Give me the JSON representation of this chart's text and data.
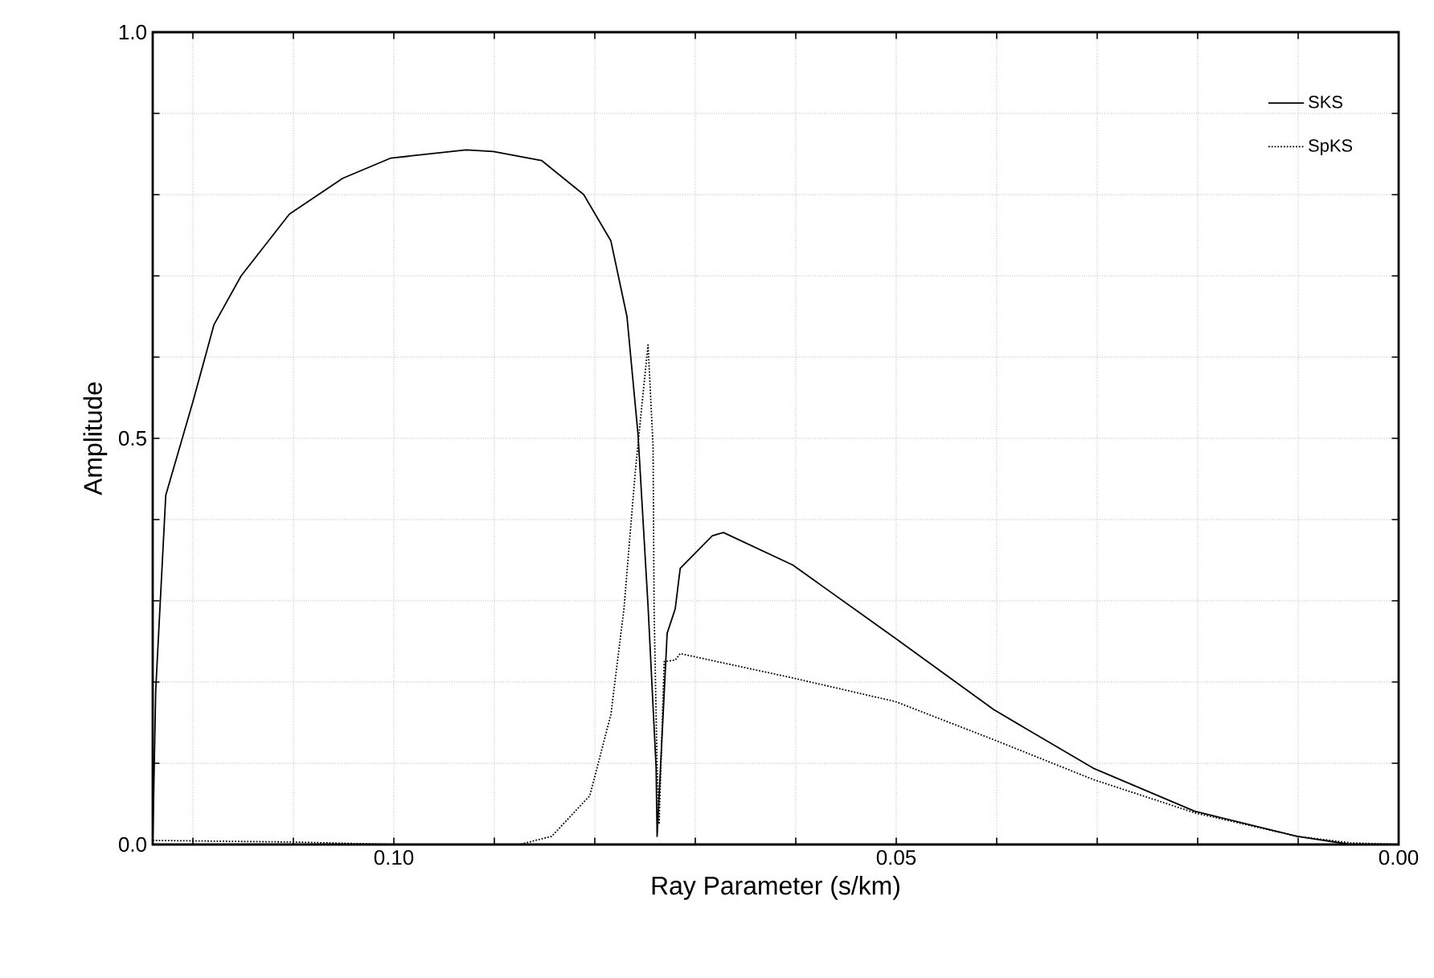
{
  "chart_data": {
    "type": "line",
    "xlabel": "Ray Parameter (s/km)",
    "ylabel": "Amplitude",
    "xlim": [
      0.124,
      0
    ],
    "ylim": [
      0,
      1
    ],
    "xticks": [
      {
        "value": 0.12,
        "label": null
      },
      {
        "value": 0.11,
        "label": null
      },
      {
        "value": 0.1,
        "label": "0.10"
      },
      {
        "value": 0.09,
        "label": null
      },
      {
        "value": 0.08,
        "label": null
      },
      {
        "value": 0.07,
        "label": null
      },
      {
        "value": 0.06,
        "label": null
      },
      {
        "value": 0.05,
        "label": "0.05"
      },
      {
        "value": 0.04,
        "label": null
      },
      {
        "value": 0.03,
        "label": null
      },
      {
        "value": 0.02,
        "label": null
      },
      {
        "value": 0.01,
        "label": null
      },
      {
        "value": 0,
        "label": "0.00"
      }
    ],
    "yticks": [
      {
        "value": 0,
        "label": "0.0"
      },
      {
        "value": 0.1,
        "label": null
      },
      {
        "value": 0.2,
        "label": null
      },
      {
        "value": 0.3,
        "label": null
      },
      {
        "value": 0.4,
        "label": null
      },
      {
        "value": 0.5,
        "label": "0.5"
      },
      {
        "value": 0.6,
        "label": null
      },
      {
        "value": 0.7,
        "label": null
      },
      {
        "value": 0.8,
        "label": null
      },
      {
        "value": 0.9,
        "label": null
      },
      {
        "value": 1,
        "label": "1.0"
      }
    ],
    "grid": true,
    "legend": "top right",
    "series": [
      {
        "name": "SKS",
        "color": "#000000",
        "line_style": "solid",
        "x": [
          0.124,
          0.1237,
          0.1227,
          0.12,
          0.1179,
          0.1152,
          0.1104,
          0.1051,
          0.1003,
          0.0928,
          0.0901,
          0.0853,
          0.0811,
          0.0784,
          0.0768,
          0.0757,
          0.0747,
          0.0739,
          0.0738,
          0.0728,
          0.072,
          0.0715,
          0.0683,
          0.0672,
          0.0603,
          0.0501,
          0.0403,
          0.0304,
          0.0203,
          0.0101,
          0.0048,
          0
        ],
        "values": [
          0,
          0.19,
          0.43,
          0.545,
          0.64,
          0.7,
          0.776,
          0.82,
          0.845,
          0.855,
          0.853,
          0.842,
          0.8,
          0.743,
          0.65,
          0.505,
          0.293,
          0.095,
          0.01,
          0.26,
          0.29,
          0.34,
          0.38,
          0.384,
          0.344,
          0.254,
          0.166,
          0.094,
          0.041,
          0.01,
          0,
          0
        ]
      },
      {
        "name": "SpKS",
        "color": "#000000",
        "line_style": "dotted",
        "x": [
          0.124,
          0.11,
          0.1,
          0.0875,
          0.0843,
          0.0805,
          0.0784,
          0.0771,
          0.076,
          0.0752,
          0.0747,
          0.0742,
          0.0741,
          0.0738,
          0.0736,
          0.0731,
          0.072,
          0.0715,
          0.0603,
          0.0501,
          0.0403,
          0.0304,
          0.0203,
          0.0101,
          0.0048,
          0
        ],
        "values": [
          0.005,
          0.003,
          0,
          0,
          0.01,
          0.06,
          0.16,
          0.29,
          0.455,
          0.555,
          0.615,
          0.49,
          0.29,
          0.095,
          0.025,
          0.225,
          0.227,
          0.235,
          0.205,
          0.176,
          0.129,
          0.08,
          0.039,
          0.01,
          0.002,
          0
        ]
      }
    ]
  }
}
